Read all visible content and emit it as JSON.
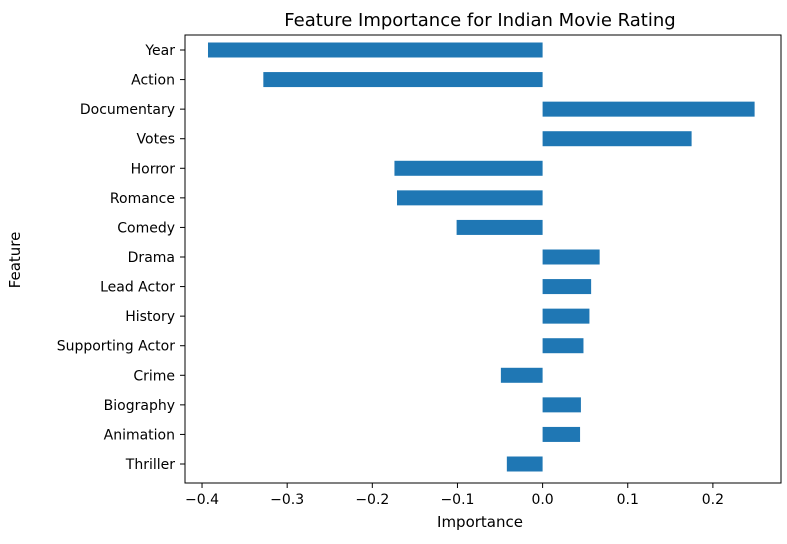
{
  "chart_data": {
    "type": "bar",
    "orientation": "horizontal",
    "title": "Feature Importance for Indian Movie Rating",
    "xlabel": "Importance",
    "ylabel": "Feature",
    "xlim": [
      -0.42,
      0.28
    ],
    "xticks": [
      -0.4,
      -0.3,
      -0.2,
      -0.1,
      0.0,
      0.1,
      0.2
    ],
    "xtick_labels": [
      "−0.4",
      "−0.3",
      "−0.2",
      "−0.1",
      "0.0",
      "0.1",
      "0.2"
    ],
    "grid": false,
    "bar_color": "#1f77b4",
    "categories": [
      "Year",
      "Action",
      "Documentary",
      "Votes",
      "Horror",
      "Romance",
      "Comedy",
      "Drama",
      "Lead Actor",
      "History",
      "Supporting Actor",
      "Crime",
      "Biography",
      "Animation",
      "Thriller"
    ],
    "values": [
      -0.393,
      -0.328,
      0.249,
      0.175,
      -0.174,
      -0.171,
      -0.101,
      0.067,
      0.057,
      0.055,
      0.048,
      -0.049,
      0.045,
      0.044,
      -0.042
    ]
  }
}
